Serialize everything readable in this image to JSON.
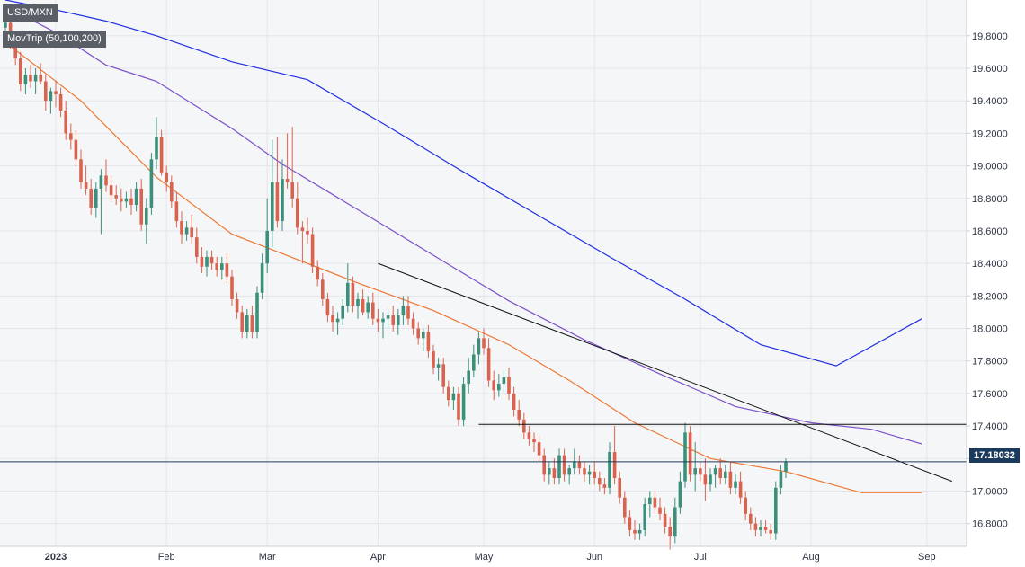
{
  "symbol": "USD/MXN",
  "indicator_label": "MovTrip (50,100,200)",
  "last_price_label": "17.18032",
  "colors": {
    "up": "#3c8f7a",
    "down": "#d9634e",
    "ma50": "#ee7733",
    "ma100": "#7b52c9",
    "ma200": "#1f2ee0",
    "trendline": "#111111",
    "support": "#111111",
    "last_price_line": "#1c3a5c"
  },
  "chart_data": {
    "type": "candlestick",
    "title": "",
    "ylim": [
      16.66,
      20.02
    ],
    "y_ticks": [
      "19.8000",
      "19.6000",
      "19.4000",
      "19.2000",
      "19.0000",
      "18.8000",
      "18.6000",
      "18.4000",
      "18.2000",
      "18.0000",
      "17.8000",
      "17.6000",
      "17.4000",
      "17.2000",
      "17.0000",
      "16.8000"
    ],
    "x_ticks": [
      {
        "label": "2023",
        "bold": true,
        "bar": 10
      },
      {
        "label": "Feb",
        "bold": false,
        "bar": 32
      },
      {
        "label": "Mar",
        "bold": false,
        "bar": 52
      },
      {
        "label": "Apr",
        "bold": false,
        "bar": 74
      },
      {
        "label": "May",
        "bold": false,
        "bar": 95
      },
      {
        "label": "Jun",
        "bold": false,
        "bar": 117
      },
      {
        "label": "Jul",
        "bold": false,
        "bar": 138
      },
      {
        "label": "Aug",
        "bold": false,
        "bar": 160
      },
      {
        "label": "Sep",
        "bold": false,
        "bar": 183
      }
    ],
    "candles": [
      [
        19.85,
        19.9,
        19.8,
        19.88
      ],
      [
        19.88,
        19.92,
        19.72,
        19.76
      ],
      [
        19.76,
        19.8,
        19.62,
        19.66
      ],
      [
        19.66,
        19.7,
        19.46,
        19.5
      ],
      [
        19.5,
        19.6,
        19.44,
        19.56
      ],
      [
        19.56,
        19.62,
        19.48,
        19.52
      ],
      [
        19.52,
        19.6,
        19.44,
        19.56
      ],
      [
        19.56,
        19.63,
        19.5,
        19.52
      ],
      [
        19.52,
        19.56,
        19.34,
        19.4
      ],
      [
        19.4,
        19.48,
        19.32,
        19.46
      ],
      [
        19.46,
        19.52,
        19.36,
        19.44
      ],
      [
        19.44,
        19.48,
        19.3,
        19.34
      ],
      [
        19.34,
        19.4,
        19.16,
        19.2
      ],
      [
        19.2,
        19.26,
        19.1,
        19.16
      ],
      [
        19.16,
        19.22,
        19.0,
        19.04
      ],
      [
        19.04,
        19.1,
        18.86,
        18.9
      ],
      [
        18.9,
        19.0,
        18.82,
        18.86
      ],
      [
        18.86,
        18.92,
        18.7,
        18.74
      ],
      [
        18.74,
        18.9,
        18.68,
        18.86
      ],
      [
        18.86,
        18.98,
        18.58,
        18.94
      ],
      [
        18.94,
        19.04,
        18.84,
        18.88
      ],
      [
        18.88,
        18.94,
        18.78,
        18.82
      ],
      [
        18.82,
        18.88,
        18.76,
        18.8
      ],
      [
        18.8,
        18.86,
        18.72,
        18.78
      ],
      [
        18.78,
        18.84,
        18.74,
        18.8
      ],
      [
        18.8,
        18.86,
        18.7,
        18.76
      ],
      [
        18.76,
        18.9,
        18.72,
        18.86
      ],
      [
        18.86,
        18.92,
        18.6,
        18.64
      ],
      [
        18.64,
        18.8,
        18.52,
        18.74
      ],
      [
        18.74,
        19.08,
        18.7,
        19.04
      ],
      [
        19.04,
        19.3,
        18.98,
        19.18
      ],
      [
        19.18,
        19.22,
        18.94,
        18.96
      ],
      [
        18.96,
        19.0,
        18.84,
        18.9
      ],
      [
        18.9,
        18.94,
        18.74,
        18.78
      ],
      [
        18.78,
        18.84,
        18.62,
        18.66
      ],
      [
        18.66,
        18.72,
        18.52,
        18.58
      ],
      [
        18.58,
        18.66,
        18.54,
        18.62
      ],
      [
        18.62,
        18.7,
        18.52,
        18.56
      ],
      [
        18.56,
        18.62,
        18.4,
        18.44
      ],
      [
        18.44,
        18.5,
        18.34,
        18.38
      ],
      [
        18.38,
        18.48,
        18.32,
        18.44
      ],
      [
        18.44,
        18.48,
        18.36,
        18.4
      ],
      [
        18.4,
        18.44,
        18.32,
        18.36
      ],
      [
        18.36,
        18.44,
        18.3,
        18.4
      ],
      [
        18.4,
        18.46,
        18.28,
        18.32
      ],
      [
        18.32,
        18.36,
        18.14,
        18.18
      ],
      [
        18.18,
        18.22,
        18.06,
        18.1
      ],
      [
        18.1,
        18.14,
        17.94,
        17.98
      ],
      [
        17.98,
        18.12,
        17.94,
        18.08
      ],
      [
        18.08,
        18.14,
        17.94,
        17.98
      ],
      [
        17.98,
        18.26,
        17.94,
        18.22
      ],
      [
        18.22,
        18.46,
        18.18,
        18.4
      ],
      [
        18.4,
        18.8,
        18.34,
        18.6
      ],
      [
        18.6,
        19.16,
        18.5,
        18.9
      ],
      [
        18.9,
        19.18,
        18.62,
        18.66
      ],
      [
        18.66,
        19.04,
        18.6,
        18.92
      ],
      [
        18.92,
        19.2,
        18.86,
        18.9
      ],
      [
        18.9,
        19.24,
        18.74,
        18.8
      ],
      [
        18.8,
        18.9,
        18.58,
        18.62
      ],
      [
        18.62,
        18.66,
        18.4,
        18.6
      ],
      [
        18.6,
        18.68,
        18.52,
        18.58
      ],
      [
        18.58,
        18.62,
        18.34,
        18.38
      ],
      [
        18.38,
        18.42,
        18.26,
        18.3
      ],
      [
        18.3,
        18.34,
        18.14,
        18.18
      ],
      [
        18.18,
        18.22,
        18.04,
        18.08
      ],
      [
        18.08,
        18.14,
        17.98,
        18.04
      ],
      [
        18.04,
        18.1,
        17.96,
        18.06
      ],
      [
        18.06,
        18.18,
        18.02,
        18.14
      ],
      [
        18.14,
        18.4,
        18.1,
        18.28
      ],
      [
        18.28,
        18.32,
        18.1,
        18.14
      ],
      [
        18.14,
        18.22,
        18.06,
        18.18
      ],
      [
        18.18,
        18.24,
        18.08,
        18.1
      ],
      [
        18.1,
        18.2,
        18.06,
        18.16
      ],
      [
        18.16,
        18.22,
        18.02,
        18.06
      ],
      [
        18.06,
        18.12,
        17.98,
        18.04
      ],
      [
        18.04,
        18.1,
        17.94,
        18.06
      ],
      [
        18.06,
        18.12,
        18.0,
        18.08
      ],
      [
        18.08,
        18.14,
        17.98,
        18.02
      ],
      [
        18.02,
        18.12,
        17.96,
        18.08
      ],
      [
        18.08,
        18.2,
        18.02,
        18.14
      ],
      [
        18.14,
        18.2,
        18.02,
        18.06
      ],
      [
        18.06,
        18.1,
        17.96,
        18.0
      ],
      [
        18.0,
        18.04,
        17.9,
        17.94
      ],
      [
        17.94,
        18.0,
        17.86,
        17.98
      ],
      [
        17.98,
        18.02,
        17.82,
        17.86
      ],
      [
        17.86,
        17.9,
        17.72,
        17.76
      ],
      [
        17.76,
        17.82,
        17.68,
        17.78
      ],
      [
        17.78,
        17.82,
        17.6,
        17.64
      ],
      [
        17.64,
        17.68,
        17.52,
        17.56
      ],
      [
        17.56,
        17.64,
        17.5,
        17.6
      ],
      [
        17.6,
        17.64,
        17.4,
        17.44
      ],
      [
        17.44,
        17.7,
        17.4,
        17.66
      ],
      [
        17.66,
        17.82,
        17.6,
        17.74
      ],
      [
        17.74,
        17.9,
        17.7,
        17.84
      ],
      [
        17.84,
        17.98,
        17.78,
        17.94
      ],
      [
        17.94,
        18.0,
        17.84,
        17.88
      ],
      [
        17.88,
        17.94,
        17.64,
        17.68
      ],
      [
        17.68,
        17.74,
        17.56,
        17.62
      ],
      [
        17.62,
        17.72,
        17.58,
        17.66
      ],
      [
        17.66,
        17.74,
        17.6,
        17.7
      ],
      [
        17.7,
        17.76,
        17.56,
        17.6
      ],
      [
        17.6,
        17.64,
        17.46,
        17.5
      ],
      [
        17.5,
        17.56,
        17.4,
        17.44
      ],
      [
        17.44,
        17.48,
        17.32,
        17.36
      ],
      [
        17.36,
        17.4,
        17.28,
        17.32
      ],
      [
        17.32,
        17.36,
        17.24,
        17.3
      ],
      [
        17.3,
        17.34,
        17.18,
        17.22
      ],
      [
        17.22,
        17.26,
        17.06,
        17.1
      ],
      [
        17.1,
        17.18,
        17.04,
        17.14
      ],
      [
        17.14,
        17.2,
        17.04,
        17.08
      ],
      [
        17.08,
        17.26,
        17.04,
        17.22
      ],
      [
        17.22,
        17.26,
        17.06,
        17.1
      ],
      [
        17.1,
        17.16,
        17.04,
        17.14
      ],
      [
        17.14,
        17.26,
        17.1,
        17.18
      ],
      [
        17.18,
        17.22,
        17.1,
        17.14
      ],
      [
        17.14,
        17.18,
        17.06,
        17.1
      ],
      [
        17.1,
        17.16,
        17.04,
        17.12
      ],
      [
        17.12,
        17.18,
        17.04,
        17.08
      ],
      [
        17.08,
        17.12,
        17.0,
        17.04
      ],
      [
        17.04,
        17.08,
        16.98,
        17.02
      ],
      [
        17.02,
        17.3,
        16.98,
        17.24
      ],
      [
        17.24,
        17.4,
        17.04,
        17.08
      ],
      [
        17.08,
        17.12,
        16.92,
        16.96
      ],
      [
        16.96,
        17.0,
        16.8,
        16.84
      ],
      [
        16.84,
        16.88,
        16.72,
        16.76
      ],
      [
        16.76,
        16.82,
        16.7,
        16.74
      ],
      [
        16.74,
        16.8,
        16.7,
        16.76
      ],
      [
        16.76,
        16.96,
        16.72,
        16.92
      ],
      [
        16.92,
        17.0,
        16.84,
        16.96
      ],
      [
        16.96,
        17.0,
        16.86,
        16.9
      ],
      [
        16.9,
        16.96,
        16.82,
        16.86
      ],
      [
        16.86,
        16.9,
        16.74,
        16.78
      ],
      [
        16.78,
        16.84,
        16.64,
        16.72
      ],
      [
        16.72,
        16.96,
        16.68,
        16.9
      ],
      [
        16.9,
        17.12,
        16.86,
        17.06
      ],
      [
        17.06,
        17.42,
        17.02,
        17.36
      ],
      [
        17.36,
        17.4,
        17.06,
        17.1
      ],
      [
        17.1,
        17.3,
        17.0,
        17.14
      ],
      [
        17.14,
        17.18,
        17.06,
        17.1
      ],
      [
        17.1,
        17.2,
        16.94,
        17.04
      ],
      [
        17.04,
        17.14,
        17.0,
        17.1
      ],
      [
        17.1,
        17.16,
        17.02,
        17.14
      ],
      [
        17.14,
        17.2,
        17.04,
        17.08
      ],
      [
        17.08,
        17.16,
        17.04,
        17.12
      ],
      [
        17.12,
        17.18,
        16.98,
        17.02
      ],
      [
        17.02,
        17.1,
        16.98,
        17.06
      ],
      [
        17.06,
        17.12,
        16.92,
        16.96
      ],
      [
        16.96,
        17.0,
        16.82,
        16.86
      ],
      [
        16.86,
        16.9,
        16.76,
        16.8
      ],
      [
        16.8,
        16.84,
        16.72,
        16.76
      ],
      [
        16.76,
        16.82,
        16.72,
        16.78
      ],
      [
        16.78,
        16.82,
        16.74,
        16.76
      ],
      [
        16.76,
        16.8,
        16.7,
        16.74
      ],
      [
        16.74,
        17.06,
        16.7,
        17.02
      ],
      [
        17.02,
        17.16,
        16.98,
        17.12
      ],
      [
        17.12,
        17.2,
        17.08,
        17.18
      ]
    ],
    "moving_averages": [
      {
        "name": "50",
        "color": "#ee7733",
        "points": [
          [
            0,
            19.76
          ],
          [
            15,
            19.4
          ],
          [
            30,
            18.93
          ],
          [
            45,
            18.58
          ],
          [
            55,
            18.46
          ],
          [
            70,
            18.28
          ],
          [
            85,
            18.11
          ],
          [
            100,
            17.9
          ],
          [
            112,
            17.68
          ],
          [
            125,
            17.42
          ],
          [
            140,
            17.2
          ],
          [
            155,
            17.12
          ],
          [
            170,
            16.99
          ],
          [
            182,
            16.99
          ]
        ]
      },
      {
        "name": "100",
        "color": "#7b52c9",
        "points": [
          [
            0,
            19.98
          ],
          [
            10,
            19.82
          ],
          [
            20,
            19.62
          ],
          [
            30,
            19.52
          ],
          [
            45,
            19.23
          ],
          [
            55,
            19.01
          ],
          [
            70,
            18.73
          ],
          [
            85,
            18.45
          ],
          [
            100,
            18.17
          ],
          [
            115,
            17.93
          ],
          [
            130,
            17.72
          ],
          [
            145,
            17.52
          ],
          [
            160,
            17.42
          ],
          [
            172,
            17.38
          ],
          [
            182,
            17.29
          ]
        ]
      },
      {
        "name": "200",
        "color": "#1f2ee0",
        "points": [
          [
            0,
            20.02
          ],
          [
            10,
            19.96
          ],
          [
            20,
            19.89
          ],
          [
            30,
            19.8
          ],
          [
            45,
            19.64
          ],
          [
            60,
            19.53
          ],
          [
            75,
            19.26
          ],
          [
            90,
            18.98
          ],
          [
            105,
            18.71
          ],
          [
            120,
            18.44
          ],
          [
            135,
            18.18
          ],
          [
            150,
            17.9
          ],
          [
            165,
            17.77
          ],
          [
            182,
            18.06
          ]
        ]
      }
    ],
    "trendline": {
      "from": [
        74,
        18.4
      ],
      "to": [
        188,
        17.06
      ]
    },
    "support_line": {
      "from": [
        94,
        17.41
      ],
      "to": [
        188,
        17.41
      ]
    },
    "last_price": 17.18
  }
}
